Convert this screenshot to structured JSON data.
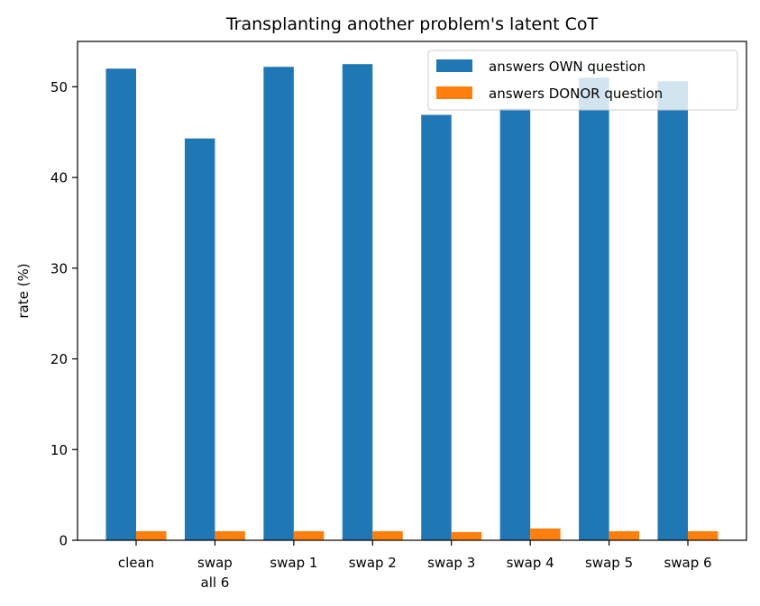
{
  "chart_data": {
    "type": "bar",
    "title": "Transplanting another problem's latent CoT",
    "xlabel": "",
    "ylabel": "rate (%)",
    "ylim": [
      0,
      55
    ],
    "yticks": [
      0,
      10,
      20,
      30,
      40,
      50
    ],
    "categories": [
      [
        "clean"
      ],
      [
        "swap",
        "all 6"
      ],
      [
        "swap 1"
      ],
      [
        "swap 2"
      ],
      [
        "swap 3"
      ],
      [
        "swap 4"
      ],
      [
        "swap 5"
      ],
      [
        "swap 6"
      ]
    ],
    "series": [
      {
        "name": "answers OWN question",
        "color": "#1f77b4",
        "values": [
          52.0,
          44.3,
          52.2,
          52.5,
          46.9,
          47.6,
          51.0,
          50.6
        ]
      },
      {
        "name": "answers DONOR question",
        "color": "#ff7f0e",
        "values": [
          1.0,
          1.0,
          1.0,
          1.0,
          0.9,
          1.3,
          1.0,
          1.0
        ]
      }
    ],
    "legend_position": "top-right",
    "grid": false
  }
}
